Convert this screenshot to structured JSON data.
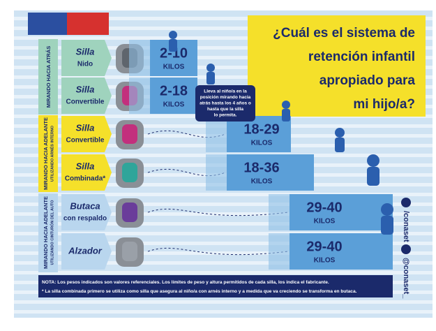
{
  "title": {
    "lines": [
      "¿Cuál es el sistema de",
      "retención infantil",
      "apropiado para",
      "mi hijo/a?"
    ]
  },
  "groups": [
    {
      "label": "MIRANDO HACIA ATRÁS"
    },
    {
      "label": "MIRANDO HACIA ADELANTE",
      "sublabel": "UTILIZANDO ARNÉS INTERNO"
    },
    {
      "label": "MIRANDO HACIA ADELANTE",
      "sublabel": "UTILIZANDO CINTURÓN DEL AUTO"
    }
  ],
  "seats": [
    {
      "name": "Silla",
      "type": "Nido",
      "weight": "2-10",
      "unit": "KILOS"
    },
    {
      "name": "Silla",
      "type": "Convertible",
      "weight": "2-18",
      "unit": "KILOS"
    },
    {
      "name": "Silla",
      "type": "Convertible",
      "weight": "18-29",
      "unit": "KILOS"
    },
    {
      "name": "Silla",
      "type": "Combinada*",
      "weight": "18-36",
      "unit": "KILOS"
    },
    {
      "name": "Butaca",
      "type": "con respaldo",
      "weight": "29-40",
      "unit": "KILOS"
    },
    {
      "name": "Alzador",
      "weight": "29-40",
      "unit": "KILOS"
    }
  ],
  "bubble": {
    "lines": [
      "Lleva al niño/a en la",
      "posición mirando hacia",
      "atrás hasta los 4 años o",
      "hasta que la silla",
      "lo permita."
    ]
  },
  "notes": [
    "NOTA: Los pesos indicados son valores referenciales. Los límites de peso y altura permitidos de cada silla, los indica el fabricante.",
    "* La silla combinada primero se utiliza como silla que asegura al niño/a con arnés interno y a medida que va creciendo se transforma en butaca."
  ],
  "social": {
    "facebook": "/conaset",
    "twitter": "@conaset_"
  }
}
